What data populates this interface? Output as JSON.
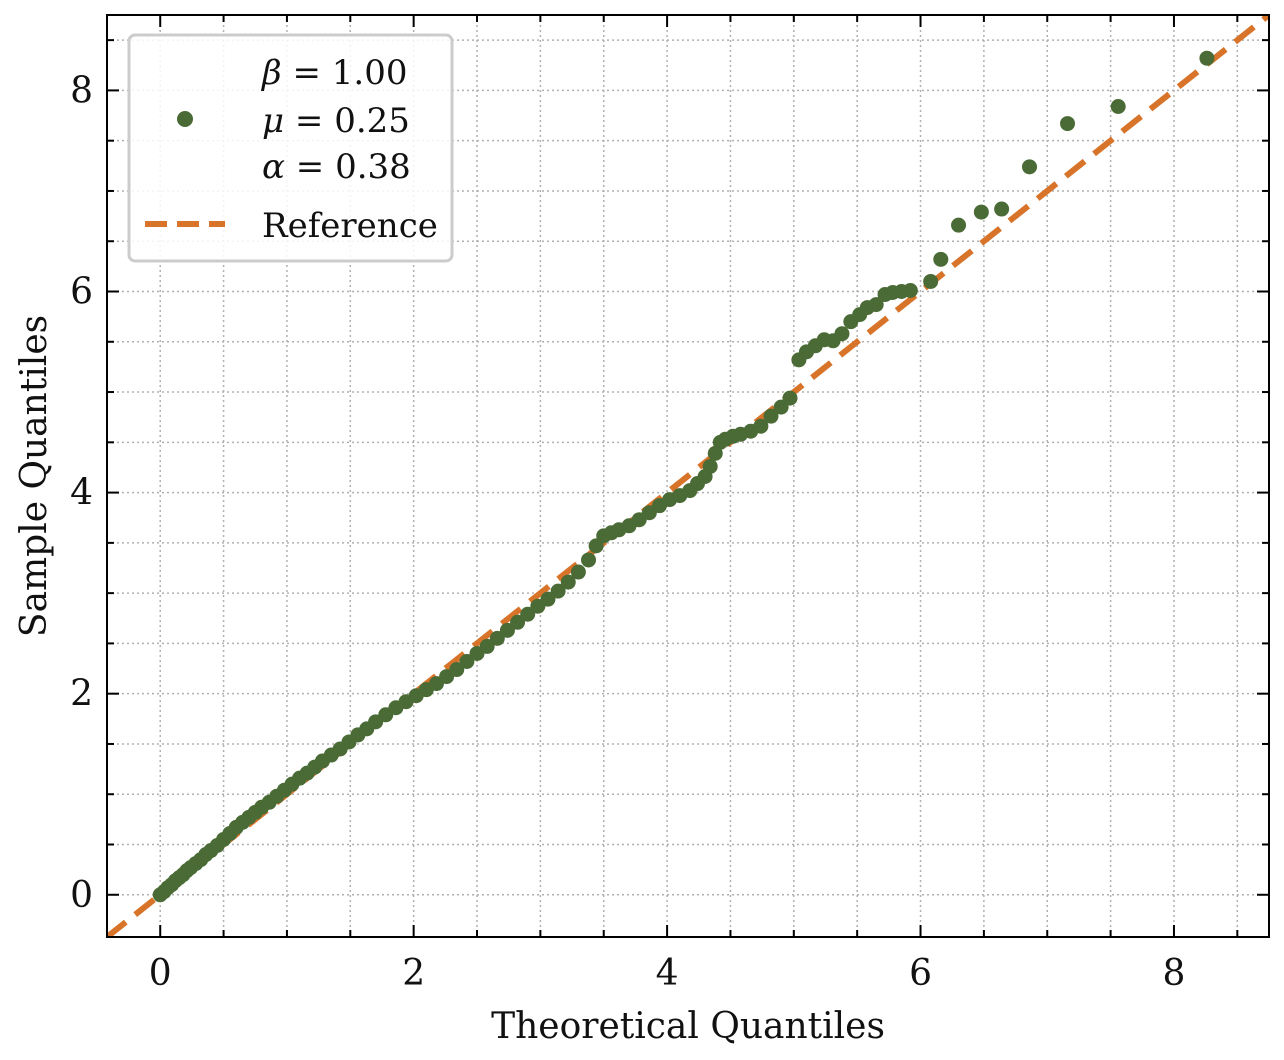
{
  "chart_data": {
    "type": "scatter",
    "title": "",
    "xlabel": "Theoretical Quantiles",
    "ylabel": "Sample Quantiles",
    "xlim": [
      -0.42,
      8.75
    ],
    "ylim": [
      -0.42,
      8.75
    ],
    "xticks": [
      0,
      2,
      4,
      6,
      8
    ],
    "yticks": [
      0,
      2,
      4,
      6,
      8
    ],
    "grid": true,
    "legend_position": "top-left",
    "colors": {
      "points": "#4a6b35",
      "reference": "#d8742a"
    },
    "legend": {
      "series_lines": [
        {
          "symbol": "β",
          "rest": " = 1.00"
        },
        {
          "symbol": "μ",
          "rest": " = 0.25"
        },
        {
          "symbol": "α",
          "rest": " = 0.38"
        }
      ],
      "reference_label": "Reference"
    },
    "reference_line": {
      "slope": 1,
      "intercept": 0
    },
    "series": [
      {
        "x": [
          0.0,
          0.03,
          0.06,
          0.09,
          0.12,
          0.15,
          0.18,
          0.21,
          0.24,
          0.28,
          0.32,
          0.36,
          0.4,
          0.45,
          0.5,
          0.55,
          0.6,
          0.65,
          0.7,
          0.75,
          0.8,
          0.86,
          0.92,
          0.98,
          1.04,
          1.1,
          1.16,
          1.22,
          1.28,
          1.35,
          1.42,
          1.49,
          1.56,
          1.63,
          1.7,
          1.78,
          1.86,
          1.94,
          2.02,
          2.1,
          2.18,
          2.26,
          2.34,
          2.42,
          2.5,
          2.58,
          2.66,
          2.74,
          2.82,
          2.9,
          2.98,
          3.06,
          3.14,
          3.22,
          3.3,
          3.38,
          3.44,
          3.5,
          3.56,
          3.62,
          3.7,
          3.78,
          3.86,
          3.94,
          4.02,
          4.1,
          4.18,
          4.24,
          4.3,
          4.34,
          4.38,
          4.42,
          4.46,
          4.52,
          4.58,
          4.66,
          4.74,
          4.82,
          4.9,
          4.97,
          5.04,
          5.1,
          5.17,
          5.24,
          5.31,
          5.38,
          5.45,
          5.52,
          5.58,
          5.65,
          5.72,
          5.78,
          5.85,
          5.92,
          6.08,
          6.16,
          6.3,
          6.48,
          6.64,
          6.86,
          7.16,
          7.56,
          8.26
        ],
        "y": [
          0.0,
          0.03,
          0.07,
          0.1,
          0.14,
          0.17,
          0.2,
          0.24,
          0.27,
          0.31,
          0.35,
          0.4,
          0.44,
          0.49,
          0.55,
          0.61,
          0.67,
          0.72,
          0.77,
          0.82,
          0.87,
          0.92,
          0.98,
          1.04,
          1.1,
          1.16,
          1.21,
          1.27,
          1.33,
          1.39,
          1.45,
          1.52,
          1.59,
          1.65,
          1.72,
          1.79,
          1.86,
          1.92,
          1.98,
          2.04,
          2.1,
          2.17,
          2.24,
          2.32,
          2.4,
          2.47,
          2.55,
          2.63,
          2.71,
          2.79,
          2.87,
          2.94,
          3.02,
          3.11,
          3.21,
          3.33,
          3.47,
          3.57,
          3.6,
          3.63,
          3.67,
          3.73,
          3.8,
          3.87,
          3.93,
          3.97,
          4.02,
          4.09,
          4.16,
          4.26,
          4.39,
          4.5,
          4.53,
          4.56,
          4.58,
          4.61,
          4.66,
          4.76,
          4.85,
          4.94,
          5.32,
          5.4,
          5.46,
          5.52,
          5.51,
          5.58,
          5.7,
          5.77,
          5.84,
          5.87,
          5.97,
          5.99,
          6.0,
          6.01,
          6.1,
          6.32,
          6.66,
          6.79,
          6.82,
          7.24,
          7.67,
          7.84,
          8.32
        ]
      }
    ]
  }
}
